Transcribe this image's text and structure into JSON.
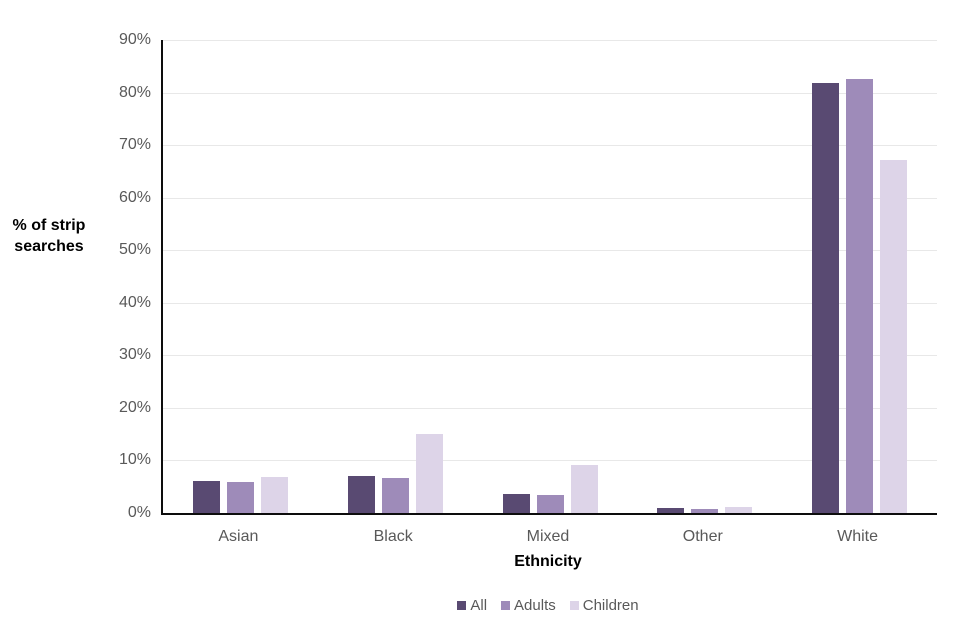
{
  "chart_data": {
    "type": "bar",
    "title": "",
    "categories": [
      "Asian",
      "Black",
      "Mixed",
      "Other",
      "White"
    ],
    "series": [
      {
        "name": "All",
        "color": "#594A72",
        "values": [
          6.0,
          7.0,
          3.6,
          0.9,
          81.9
        ]
      },
      {
        "name": "Adults",
        "color": "#9E8BB9",
        "values": [
          5.9,
          6.6,
          3.4,
          0.8,
          82.5
        ]
      },
      {
        "name": "Children",
        "color": "#DDD4E8",
        "values": [
          6.9,
          15.1,
          9.1,
          1.2,
          67.2
        ]
      }
    ],
    "xlabel": "Ethnicity",
    "ylabel": "% of strip searches",
    "ylim": [
      0,
      90
    ],
    "ytick_step": 10,
    "ytick_suffix": "%",
    "grid": true,
    "legend_position": "bottom"
  },
  "colors": {
    "background": "#ffffff",
    "axis": "#0d0d0d",
    "gridline": "#e8e8e8",
    "tick_label": "#595959",
    "category_label": "#595959",
    "axis_title": "#000000"
  }
}
